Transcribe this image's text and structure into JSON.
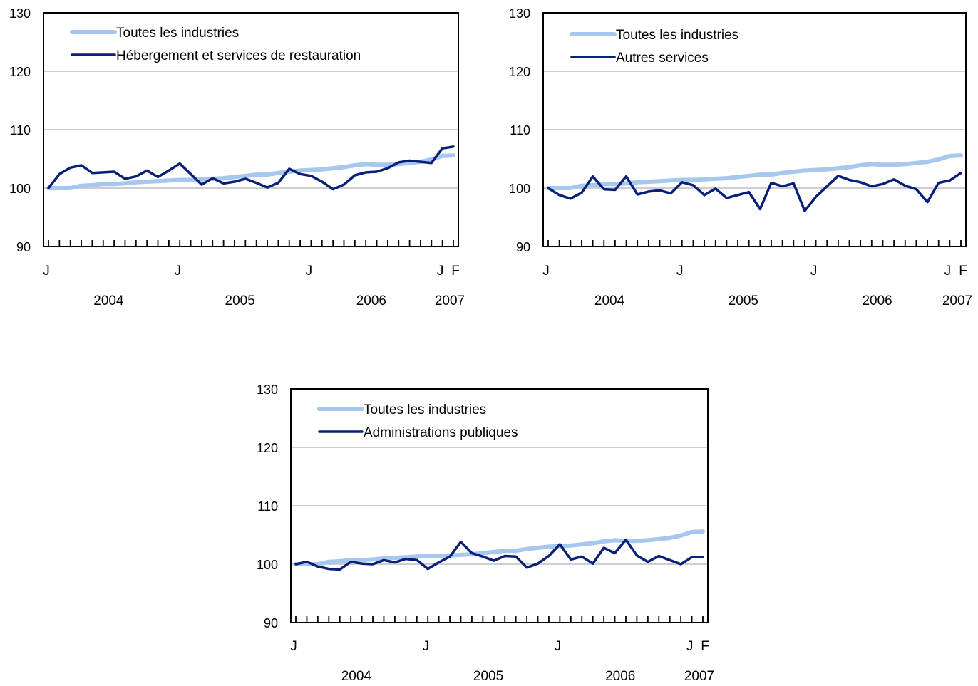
{
  "chart_data": [
    {
      "type": "line",
      "title": "",
      "xlabel": "",
      "ylabel": "",
      "ylim": [
        90,
        130
      ],
      "yticks": [
        "90",
        "100",
        "110",
        "120",
        "130"
      ],
      "month_labels": [
        {
          "index": 0,
          "label": "J"
        },
        {
          "index": 12,
          "label": "J"
        },
        {
          "index": 24,
          "label": "J"
        },
        {
          "index": 36,
          "label": "J"
        },
        {
          "index": 37,
          "label": "F"
        }
      ],
      "year_labels": [
        "2004",
        "2005",
        "2006",
        "2007"
      ],
      "grid": true,
      "legend": "top-left",
      "series": [
        {
          "name": "Toutes les industries",
          "color": "#a7c8ee",
          "values": [
            100.0,
            100.0,
            100.0,
            100.4,
            100.5,
            100.7,
            100.7,
            100.8,
            101.0,
            101.1,
            101.2,
            101.3,
            101.4,
            101.4,
            101.5,
            101.6,
            101.7,
            101.9,
            102.1,
            102.3,
            102.3,
            102.6,
            102.8,
            103.0,
            103.1,
            103.2,
            103.4,
            103.6,
            103.9,
            104.1,
            104.0,
            104.0,
            104.1,
            104.3,
            104.5,
            104.9,
            105.5,
            105.6
          ]
        },
        {
          "name": "Hébergement et services de restauration",
          "color": "#0a1f7a",
          "values": [
            100.0,
            102.4,
            103.5,
            103.9,
            102.6,
            102.7,
            102.8,
            101.6,
            102.0,
            103.0,
            101.9,
            103.0,
            104.2,
            102.4,
            100.6,
            101.7,
            100.8,
            101.1,
            101.6,
            100.9,
            100.1,
            100.9,
            103.3,
            102.4,
            102.1,
            101.1,
            99.8,
            100.6,
            102.2,
            102.7,
            102.8,
            103.4,
            104.4,
            104.7,
            104.5,
            104.3,
            106.8,
            107.1
          ]
        }
      ]
    },
    {
      "type": "line",
      "title": "",
      "xlabel": "",
      "ylabel": "",
      "ylim": [
        90,
        130
      ],
      "yticks": [
        "90",
        "100",
        "110",
        "120",
        "130"
      ],
      "month_labels": [
        {
          "index": 0,
          "label": "J"
        },
        {
          "index": 12,
          "label": "J"
        },
        {
          "index": 24,
          "label": "J"
        },
        {
          "index": 36,
          "label": "J"
        },
        {
          "index": 37,
          "label": "F"
        }
      ],
      "year_labels": [
        "2004",
        "2005",
        "2006",
        "2007"
      ],
      "grid": true,
      "legend": "top-left",
      "series": [
        {
          "name": "Toutes les industries",
          "color": "#a7c8ee",
          "values": [
            100.0,
            100.0,
            100.0,
            100.4,
            100.5,
            100.7,
            100.7,
            100.8,
            101.0,
            101.1,
            101.2,
            101.3,
            101.4,
            101.4,
            101.5,
            101.6,
            101.7,
            101.9,
            102.1,
            102.3,
            102.3,
            102.6,
            102.8,
            103.0,
            103.1,
            103.2,
            103.4,
            103.6,
            103.9,
            104.1,
            104.0,
            104.0,
            104.1,
            104.3,
            104.5,
            104.9,
            105.5,
            105.6
          ]
        },
        {
          "name": "Autres services",
          "color": "#0a1f7a",
          "values": [
            100.0,
            98.8,
            98.2,
            99.2,
            102.0,
            99.8,
            99.7,
            102.0,
            98.9,
            99.4,
            99.6,
            99.1,
            101.0,
            100.5,
            98.8,
            99.9,
            98.3,
            98.8,
            99.3,
            96.4,
            100.9,
            100.3,
            100.8,
            96.1,
            98.5,
            100.3,
            102.1,
            101.4,
            101.0,
            100.3,
            100.7,
            101.5,
            100.4,
            99.8,
            97.6,
            100.9,
            101.3,
            102.6
          ]
        }
      ]
    },
    {
      "type": "line",
      "title": "",
      "xlabel": "",
      "ylabel": "",
      "ylim": [
        90,
        130
      ],
      "yticks": [
        "90",
        "100",
        "110",
        "120",
        "130"
      ],
      "month_labels": [
        {
          "index": 0,
          "label": "J"
        },
        {
          "index": 12,
          "label": "J"
        },
        {
          "index": 24,
          "label": "J"
        },
        {
          "index": 36,
          "label": "J"
        },
        {
          "index": 37,
          "label": "F"
        }
      ],
      "year_labels": [
        "2004",
        "2005",
        "2006",
        "2007"
      ],
      "grid": true,
      "legend": "top-left",
      "series": [
        {
          "name": "Toutes les industries",
          "color": "#a7c8ee",
          "values": [
            100.0,
            100.0,
            100.0,
            100.4,
            100.5,
            100.7,
            100.7,
            100.8,
            101.0,
            101.1,
            101.2,
            101.3,
            101.4,
            101.4,
            101.5,
            101.6,
            101.7,
            101.9,
            102.1,
            102.3,
            102.3,
            102.6,
            102.8,
            103.0,
            103.1,
            103.2,
            103.4,
            103.6,
            103.9,
            104.1,
            104.0,
            104.0,
            104.1,
            104.3,
            104.5,
            104.9,
            105.5,
            105.6
          ]
        },
        {
          "name": "Administrations publiques",
          "color": "#0a1f7a",
          "values": [
            100.0,
            100.4,
            99.6,
            99.2,
            99.1,
            100.4,
            100.1,
            100.0,
            100.7,
            100.3,
            100.9,
            100.7,
            99.2,
            100.3,
            101.3,
            103.8,
            101.9,
            101.3,
            100.6,
            101.4,
            101.3,
            99.4,
            100.1,
            101.4,
            103.4,
            100.8,
            101.3,
            100.1,
            102.8,
            101.9,
            104.2,
            101.5,
            100.4,
            101.4,
            100.7,
            100.0,
            101.2,
            101.2
          ]
        }
      ]
    }
  ]
}
